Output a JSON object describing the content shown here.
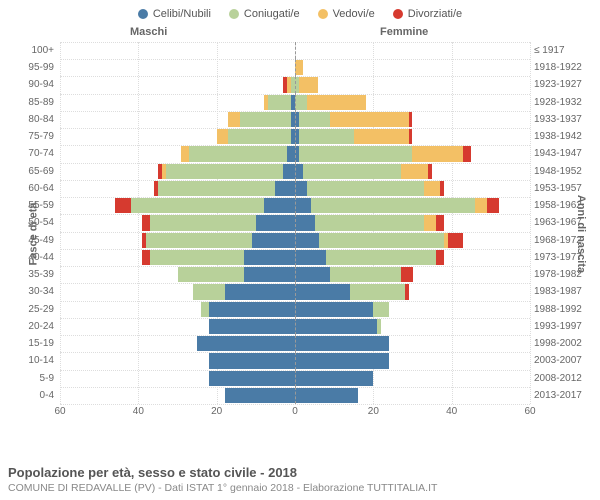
{
  "legend": [
    {
      "label": "Celibi/Nubili",
      "color": "#4a7ba6"
    },
    {
      "label": "Coniugati/e",
      "color": "#b8d19a"
    },
    {
      "label": "Vedovi/e",
      "color": "#f3c065"
    },
    {
      "label": "Divorziati/e",
      "color": "#d63a2f"
    }
  ],
  "axis": {
    "left_title": "Fasce di età",
    "right_title": "Anni di nascita",
    "male_header": "Maschi",
    "female_header": "Femmine",
    "xmax": 60,
    "xticks": [
      60,
      40,
      20,
      0,
      20,
      40,
      60
    ]
  },
  "colors": {
    "grid": "#dddddd",
    "centerline": "#999999",
    "background": "#ffffff",
    "text": "#666666"
  },
  "rows": [
    {
      "age": "100+",
      "birth": "≤ 1917",
      "m": [
        0,
        0,
        0,
        0
      ],
      "f": [
        0,
        0,
        0,
        0
      ]
    },
    {
      "age": "95-99",
      "birth": "1918-1922",
      "m": [
        0,
        0,
        0,
        0
      ],
      "f": [
        0,
        0,
        2,
        0
      ]
    },
    {
      "age": "90-94",
      "birth": "1923-1927",
      "m": [
        0,
        1,
        1,
        1
      ],
      "f": [
        0,
        1,
        5,
        0
      ]
    },
    {
      "age": "85-89",
      "birth": "1928-1932",
      "m": [
        1,
        6,
        1,
        0
      ],
      "f": [
        0,
        3,
        15,
        0
      ]
    },
    {
      "age": "80-84",
      "birth": "1933-1937",
      "m": [
        1,
        13,
        3,
        0
      ],
      "f": [
        1,
        8,
        20,
        1
      ]
    },
    {
      "age": "75-79",
      "birth": "1938-1942",
      "m": [
        1,
        16,
        3,
        0
      ],
      "f": [
        1,
        14,
        14,
        1
      ]
    },
    {
      "age": "70-74",
      "birth": "1943-1947",
      "m": [
        2,
        25,
        2,
        0
      ],
      "f": [
        1,
        29,
        13,
        2
      ]
    },
    {
      "age": "65-69",
      "birth": "1948-1952",
      "m": [
        3,
        30,
        1,
        1
      ],
      "f": [
        2,
        25,
        7,
        1
      ]
    },
    {
      "age": "60-64",
      "birth": "1953-1957",
      "m": [
        5,
        30,
        0,
        1
      ],
      "f": [
        3,
        30,
        4,
        1
      ]
    },
    {
      "age": "55-59",
      "birth": "1958-1962",
      "m": [
        8,
        34,
        0,
        4
      ],
      "f": [
        4,
        42,
        3,
        3
      ]
    },
    {
      "age": "50-54",
      "birth": "1963-1967",
      "m": [
        10,
        27,
        0,
        2
      ],
      "f": [
        5,
        28,
        3,
        2
      ]
    },
    {
      "age": "45-49",
      "birth": "1968-1972",
      "m": [
        11,
        27,
        0,
        1
      ],
      "f": [
        6,
        32,
        1,
        4
      ]
    },
    {
      "age": "40-44",
      "birth": "1973-1977",
      "m": [
        13,
        24,
        0,
        2
      ],
      "f": [
        8,
        28,
        0,
        2
      ]
    },
    {
      "age": "35-39",
      "birth": "1978-1982",
      "m": [
        13,
        17,
        0,
        0
      ],
      "f": [
        9,
        18,
        0,
        3
      ]
    },
    {
      "age": "30-34",
      "birth": "1983-1987",
      "m": [
        18,
        8,
        0,
        0
      ],
      "f": [
        14,
        14,
        0,
        1
      ]
    },
    {
      "age": "25-29",
      "birth": "1988-1992",
      "m": [
        22,
        2,
        0,
        0
      ],
      "f": [
        20,
        4,
        0,
        0
      ]
    },
    {
      "age": "20-24",
      "birth": "1993-1997",
      "m": [
        22,
        0,
        0,
        0
      ],
      "f": [
        21,
        1,
        0,
        0
      ]
    },
    {
      "age": "15-19",
      "birth": "1998-2002",
      "m": [
        25,
        0,
        0,
        0
      ],
      "f": [
        24,
        0,
        0,
        0
      ]
    },
    {
      "age": "10-14",
      "birth": "2003-2007",
      "m": [
        22,
        0,
        0,
        0
      ],
      "f": [
        24,
        0,
        0,
        0
      ]
    },
    {
      "age": "5-9",
      "birth": "2008-2012",
      "m": [
        22,
        0,
        0,
        0
      ],
      "f": [
        20,
        0,
        0,
        0
      ]
    },
    {
      "age": "0-4",
      "birth": "2013-2017",
      "m": [
        18,
        0,
        0,
        0
      ],
      "f": [
        16,
        0,
        0,
        0
      ]
    }
  ],
  "footer": {
    "title": "Popolazione per età, sesso e stato civile - 2018",
    "subtitle": "COMUNE DI REDAVALLE (PV) - Dati ISTAT 1° gennaio 2018 - Elaborazione TUTTITALIA.IT"
  }
}
